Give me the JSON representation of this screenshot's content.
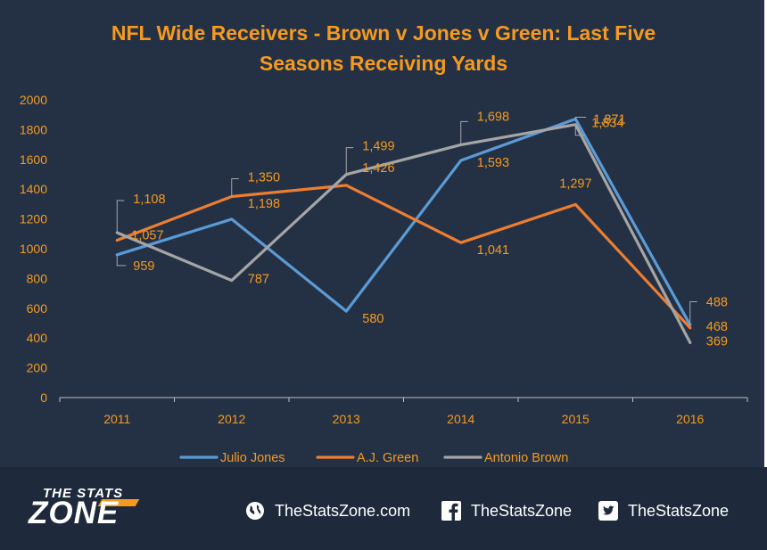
{
  "chart_data": {
    "type": "line",
    "title": "NFL Wide Receivers - Brown v Jones v Green: Last Five Seasons Receiving Yards",
    "title_lines": [
      "NFL Wide Receivers - Brown v Jones v Green: Last Five",
      "Seasons Receiving Yards"
    ],
    "xlabel": "",
    "ylabel": "",
    "categories": [
      "2011",
      "2012",
      "2013",
      "2014",
      "2015",
      "2016"
    ],
    "ylim": [
      0,
      2000
    ],
    "yticks": [
      0,
      200,
      400,
      600,
      800,
      1000,
      1200,
      1400,
      1600,
      1800,
      2000
    ],
    "grid": false,
    "legend_position": "bottom",
    "series": [
      {
        "name": "Julio Jones",
        "color": "#5b9bd5",
        "values": [
          959,
          1198,
          580,
          1593,
          1871,
          488
        ],
        "labels": [
          "959",
          "1,198",
          "580",
          "1,593",
          "1,871",
          "488"
        ]
      },
      {
        "name": "A.J. Green",
        "color": "#ed7d31",
        "values": [
          1057,
          1350,
          1426,
          1041,
          1297,
          468
        ],
        "labels": [
          "1,057",
          "1,350",
          "1,426",
          "1,041",
          "1,297",
          "468"
        ]
      },
      {
        "name": "Antonio Brown",
        "color": "#a5a5a5",
        "values": [
          1108,
          787,
          1499,
          1698,
          1834,
          369
        ],
        "labels": [
          "1,108",
          "787",
          "1,499",
          "1,698",
          "1,834",
          "369"
        ]
      }
    ],
    "colors": {
      "background": "#243145",
      "text": "#f59a1f",
      "axis": "#bfbfbf"
    }
  },
  "footer": {
    "logo_top": "THE STATS",
    "logo_main": "ZONE",
    "website": "TheStatsZone.com",
    "facebook": "TheStatsZone",
    "twitter": "TheStatsZone"
  }
}
